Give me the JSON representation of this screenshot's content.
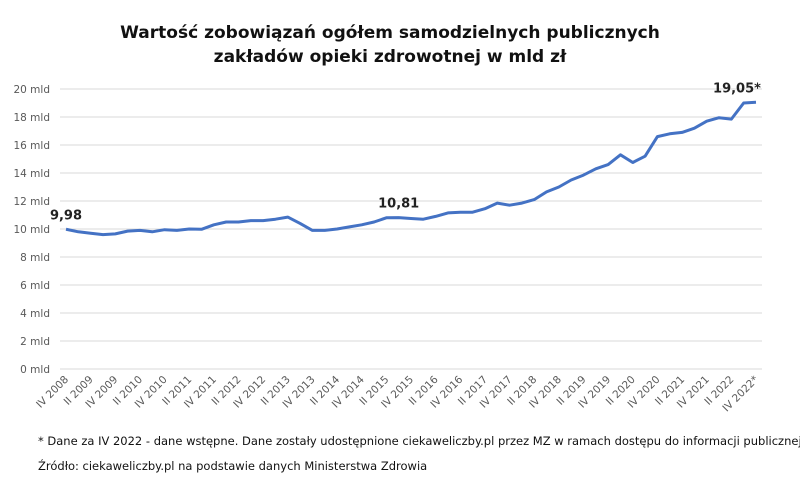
{
  "chart_data": {
    "type": "line",
    "title": [
      "Wartość zobowiązań ogółem samodzielnych publicznych",
      "zakładów opieki zdrowotnej w mld zł"
    ],
    "categories": [
      "IV 2008",
      null,
      "II 2009",
      null,
      "IV 2009",
      null,
      "II 2010",
      null,
      "IV 2010",
      null,
      "II 2011",
      null,
      "IV 2011",
      null,
      "II 2012",
      null,
      "IV 2012",
      null,
      "II 2013",
      null,
      "IV 2013",
      null,
      "II 2014",
      null,
      "IV 2014",
      null,
      "II 2015",
      null,
      "IV 2015",
      null,
      "II 2016",
      null,
      "IV 2016",
      null,
      "II 2017",
      null,
      "IV 2017",
      null,
      "II 2018",
      null,
      "IV 2018",
      null,
      "II 2019",
      null,
      "IV 2019",
      null,
      "II 2020",
      null,
      "IV 2020",
      null,
      "II 2021",
      null,
      "IV 2021",
      null,
      "II 2022",
      null,
      "IV 2022*"
    ],
    "values": [
      9.98,
      9.8,
      9.7,
      9.6,
      9.65,
      9.85,
      9.9,
      9.8,
      9.95,
      9.9,
      10.0,
      9.98,
      10.3,
      10.5,
      10.5,
      10.6,
      10.6,
      10.7,
      10.85,
      10.4,
      9.9,
      9.9,
      10.0,
      10.15,
      10.3,
      10.5,
      10.8,
      10.81,
      10.75,
      10.7,
      10.9,
      11.15,
      11.2,
      11.2,
      11.45,
      11.85,
      11.7,
      11.85,
      12.1,
      12.65,
      13.0,
      13.5,
      13.85,
      14.3,
      14.6,
      15.3,
      14.75,
      15.2,
      16.6,
      16.8,
      16.9,
      17.2,
      17.7,
      17.95,
      17.85,
      19.0,
      19.05
    ],
    "value_labels": [
      "9,98",
      null,
      null,
      null,
      null,
      null,
      null,
      null,
      null,
      null,
      null,
      null,
      null,
      null,
      null,
      null,
      null,
      null,
      null,
      null,
      null,
      null,
      null,
      null,
      null,
      null,
      null,
      "10,81",
      null,
      null,
      null,
      null,
      null,
      null,
      null,
      null,
      null,
      null,
      null,
      null,
      null,
      null,
      null,
      null,
      null,
      null,
      null,
      null,
      null,
      null,
      null,
      null,
      null,
      null,
      null,
      null,
      "19,05*"
    ],
    "color": "#4472c4",
    "ylim": [
      0,
      20
    ],
    "yticks": [
      {
        "value": 0,
        "label": "0 mld"
      },
      {
        "value": 2,
        "label": "2 mld"
      },
      {
        "value": 4,
        "label": "4 mld"
      },
      {
        "value": 6,
        "label": "6 mld"
      },
      {
        "value": 8,
        "label": "8 mld"
      },
      {
        "value": 10,
        "label": "10 mld"
      },
      {
        "value": 12,
        "label": "12 mld"
      },
      {
        "value": 14,
        "label": "14 mld"
      },
      {
        "value": 16,
        "label": "16 mld"
      },
      {
        "value": 18,
        "label": "18 mld"
      },
      {
        "value": 20,
        "label": "20 mld"
      }
    ],
    "grid": true,
    "footnotes": [
      "* Dane za IV 2022 - dane wstępne. Dane zostały udostępnione ciekaweliczby.pl przez MZ w ramach dostępu do informacji publicznej.",
      "Źródło: ciekaweliczby.pl na podstawie danych Ministerstwa Zdrowia"
    ]
  }
}
